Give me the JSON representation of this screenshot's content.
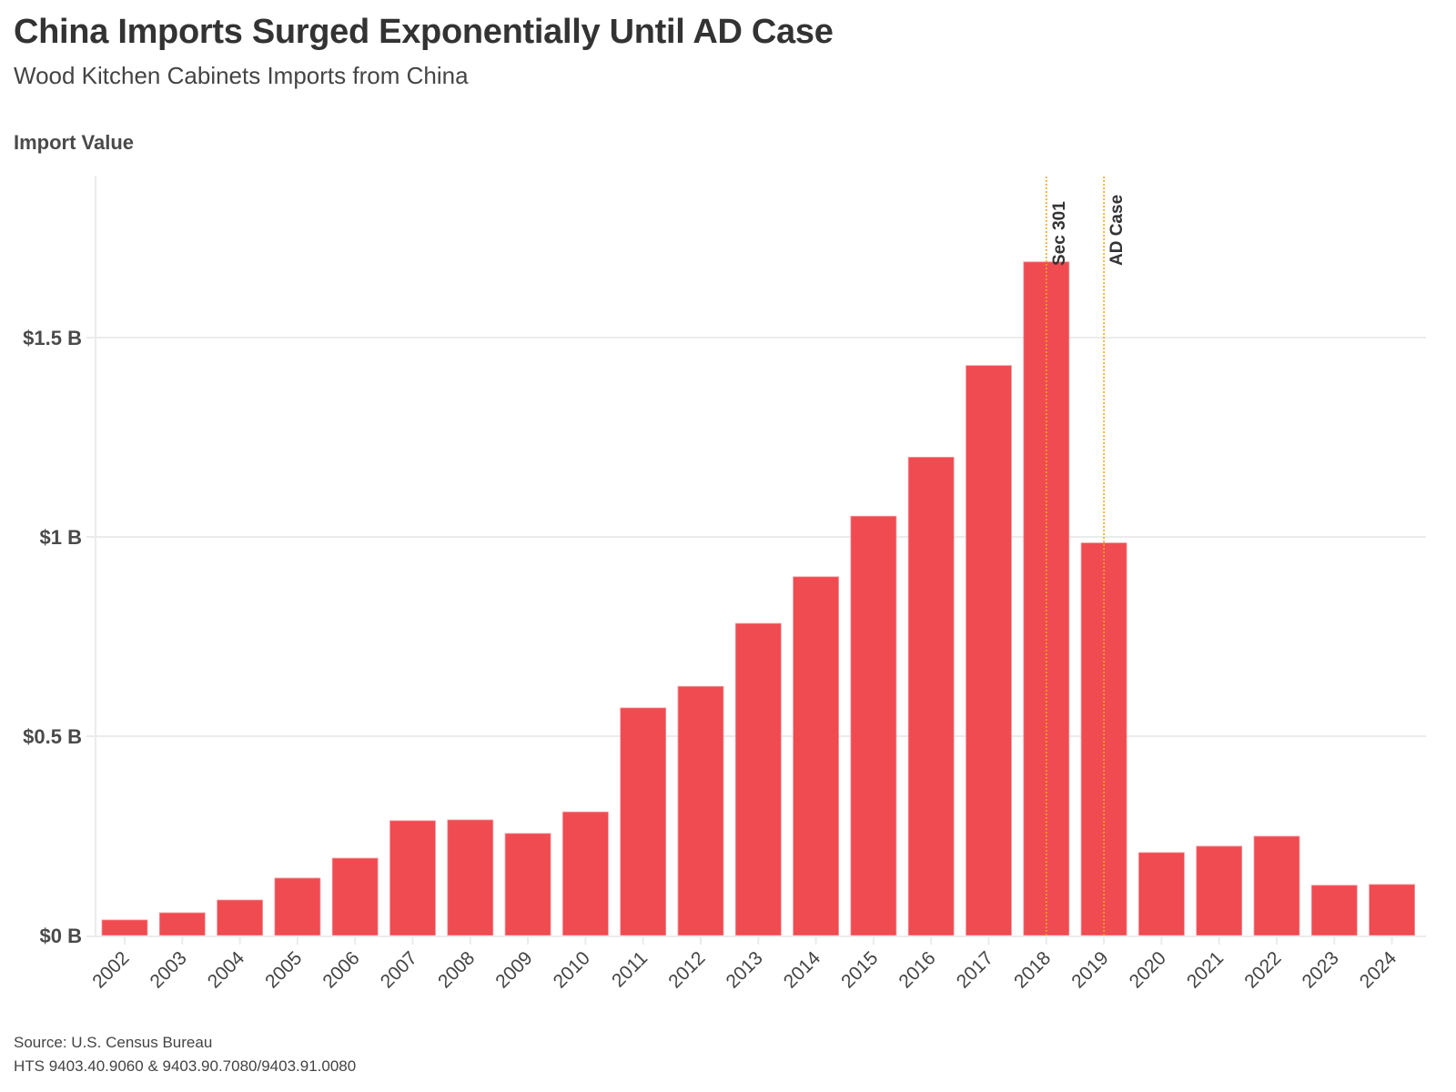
{
  "header": {
    "title": "China Imports Surged Exponentially Until AD Case",
    "subtitle": "Wood Kitchen Cabinets Imports from China",
    "axis_title": "Import Value"
  },
  "footer": {
    "source": "Source: U.S. Census Bureau",
    "hts": "HTS 9403.40.9060 & 9403.90.7080/9403.91.0080"
  },
  "colors": {
    "bar": "#ef4b51",
    "annotation_line": "#f5a623",
    "grid": "#ebebeb",
    "text": "#333333"
  },
  "chart_data": {
    "type": "bar",
    "title": "China Imports Surged Exponentially Until AD Case",
    "subtitle": "Wood Kitchen Cabinets Imports from China",
    "xlabel": "",
    "ylabel": "Import Value",
    "units": "USD billions",
    "categories": [
      "2002",
      "2003",
      "2004",
      "2005",
      "2006",
      "2007",
      "2008",
      "2009",
      "2010",
      "2011",
      "2012",
      "2013",
      "2014",
      "2015",
      "2016",
      "2017",
      "2018",
      "2019",
      "2020",
      "2021",
      "2022",
      "2023",
      "2024"
    ],
    "values": [
      0.039,
      0.057,
      0.089,
      0.144,
      0.194,
      0.288,
      0.29,
      0.256,
      0.31,
      0.571,
      0.625,
      0.783,
      0.9,
      1.052,
      1.2,
      1.43,
      1.69,
      0.985,
      0.208,
      0.224,
      0.249,
      0.126,
      0.128
    ],
    "ylim": [
      0,
      1.9
    ],
    "yticks": [
      {
        "value": 0,
        "label": "$0 B"
      },
      {
        "value": 0.5,
        "label": "$0.5 B"
      },
      {
        "value": 1,
        "label": "$1 B"
      },
      {
        "value": 1.5,
        "label": "$1.5 B"
      }
    ],
    "grid": true,
    "legend": "none",
    "annotations": [
      {
        "category": "2018",
        "label": "Sec 301",
        "style": "dotted vertical line"
      },
      {
        "category": "2019",
        "label": "AD Case",
        "style": "dotted vertical line"
      }
    ]
  }
}
